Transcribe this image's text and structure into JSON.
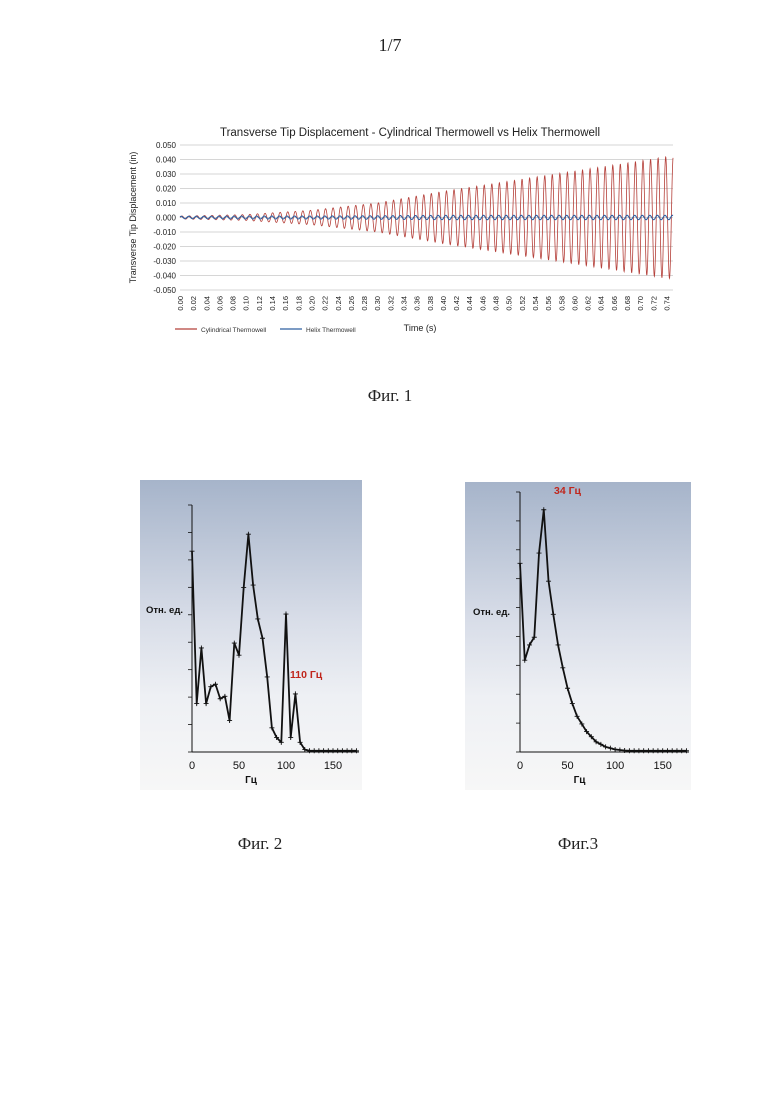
{
  "page": {
    "number": "1/7"
  },
  "captions": {
    "fig1": "Фиг. 1",
    "fig2": "Фиг. 2",
    "fig3": "Фиг.3"
  },
  "chart_data": [
    {
      "type": "line",
      "title": "Transverse Tip Displacement - Cylindrical Thermowell vs Helix Thermowell",
      "xlabel": "Time (s)",
      "ylabel": "Transverse Tip Displacement (in)",
      "xlim": [
        0,
        0.75
      ],
      "ylim": [
        -0.05,
        0.05
      ],
      "x_ticks": [
        "0.00",
        "0.02",
        "0.04",
        "0.06",
        "0.08",
        "0.10",
        "0.12",
        "0.14",
        "0.16",
        "0.18",
        "0.20",
        "0.22",
        "0.24",
        "0.26",
        "0.28",
        "0.30",
        "0.32",
        "0.34",
        "0.36",
        "0.38",
        "0.40",
        "0.42",
        "0.44",
        "0.46",
        "0.48",
        "0.50",
        "0.52",
        "0.54",
        "0.56",
        "0.58",
        "0.60",
        "0.62",
        "0.64",
        "0.66",
        "0.68",
        "0.70",
        "0.72",
        "0.74"
      ],
      "y_ticks": [
        "0.050",
        "0.040",
        "0.030",
        "0.020",
        "0.010",
        "0.000",
        "-0.010",
        "-0.020",
        "-0.030",
        "-0.040",
        "-0.050"
      ],
      "grid": true,
      "legend": "bottom-left",
      "series": [
        {
          "name": "Cylindrical Thermowell",
          "color": "#b5403a",
          "envelope_x": [
            0,
            0.1,
            0.2,
            0.3,
            0.4,
            0.5,
            0.6,
            0.7,
            0.74
          ],
          "envelope_amplitude": [
            0.001,
            0.002,
            0.005,
            0.01,
            0.018,
            0.025,
            0.032,
            0.039,
            0.042
          ],
          "oscillation_period": 0.0115
        },
        {
          "name": "Helix Thermowell",
          "color": "#2f5fa0",
          "envelope_x": [
            0,
            0.1,
            0.2,
            0.3,
            0.4,
            0.5,
            0.6,
            0.7,
            0.74
          ],
          "envelope_amplitude": [
            0.0008,
            0.001,
            0.001,
            0.0012,
            0.0015,
            0.0015,
            0.0015,
            0.0015,
            0.0015
          ],
          "oscillation_period": 0.0115
        }
      ]
    },
    {
      "type": "line",
      "xlabel": "Гц",
      "ylabel": "Отн. ед.",
      "xlim": [
        -5,
        175
      ],
      "ylim": [
        0,
        10
      ],
      "x_ticks": [
        "0",
        "50",
        "100",
        "150"
      ],
      "annotation": {
        "text": "110 Гц",
        "color": "#c0261c"
      },
      "x": [
        0,
        5,
        10,
        15,
        20,
        25,
        30,
        35,
        40,
        45,
        50,
        55,
        60,
        65,
        70,
        75,
        80,
        85,
        90,
        95,
        100,
        105,
        110,
        115,
        120,
        125,
        130,
        135,
        140,
        145,
        150,
        155,
        160,
        165,
        170,
        175
      ],
      "values": [
        8.3,
        2.0,
        4.3,
        2.0,
        2.7,
        2.8,
        2.2,
        2.3,
        1.3,
        4.5,
        4.0,
        6.8,
        9.0,
        6.9,
        5.5,
        4.7,
        3.1,
        1.0,
        0.6,
        0.4,
        5.7,
        0.6,
        2.4,
        0.4,
        0.1,
        0.05,
        0.05,
        0.05,
        0.05,
        0.05,
        0.05,
        0.05,
        0.05,
        0.05,
        0.05,
        0.05
      ]
    },
    {
      "type": "line",
      "xlabel": "Гц",
      "ylabel": "Отн. ед.",
      "xlim": [
        -5,
        175
      ],
      "ylim": [
        0,
        10
      ],
      "x_ticks": [
        "0",
        "50",
        "100",
        "150"
      ],
      "annotation": {
        "text": "34 Гц",
        "color": "#c0261c"
      },
      "x": [
        0,
        5,
        10,
        15,
        20,
        25,
        30,
        35,
        40,
        45,
        50,
        55,
        60,
        65,
        70,
        75,
        80,
        85,
        90,
        95,
        100,
        105,
        110,
        115,
        120,
        125,
        130,
        135,
        140,
        145,
        150,
        155,
        160,
        165,
        170,
        175
      ],
      "values": [
        7.4,
        3.6,
        4.2,
        4.5,
        7.8,
        9.5,
        6.7,
        5.4,
        4.2,
        3.3,
        2.5,
        1.9,
        1.4,
        1.1,
        0.8,
        0.6,
        0.4,
        0.3,
        0.2,
        0.15,
        0.1,
        0.08,
        0.06,
        0.05,
        0.05,
        0.05,
        0.05,
        0.05,
        0.05,
        0.05,
        0.05,
        0.05,
        0.05,
        0.05,
        0.05,
        0.05
      ]
    }
  ]
}
